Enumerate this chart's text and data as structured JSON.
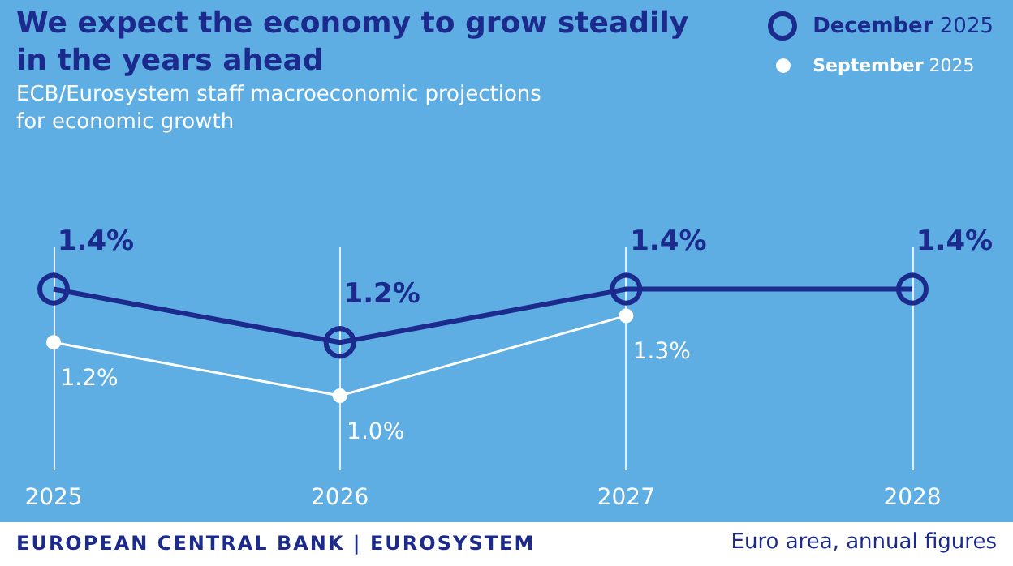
{
  "chart_data": {
    "type": "line",
    "title": "We expect the economy to grow steadily in the years ahead",
    "subtitle": "ECB/Eurosystem staff macroeconomic projections for economic growth",
    "categories": [
      "2025",
      "2026",
      "2027",
      "2028"
    ],
    "series": [
      {
        "name": "December 2025",
        "color": "#1b2a8c",
        "values": [
          1.4,
          1.2,
          1.4,
          1.4
        ],
        "value_labels": [
          "1.4%",
          "1.2%",
          "1.4%",
          "1.4%"
        ]
      },
      {
        "name": "September 2025",
        "color": "#ffffff",
        "values": [
          1.2,
          1.0,
          1.3,
          null
        ],
        "value_labels": [
          "1.2%",
          "1.0%",
          "1.3%",
          null
        ]
      }
    ],
    "marker": "circle",
    "grid": "x",
    "legend": "top right",
    "annotations": [
      "EUROPEAN CENTRAL BANK | EUROSYSTEM",
      "Euro area, annual figures"
    ]
  }
}
